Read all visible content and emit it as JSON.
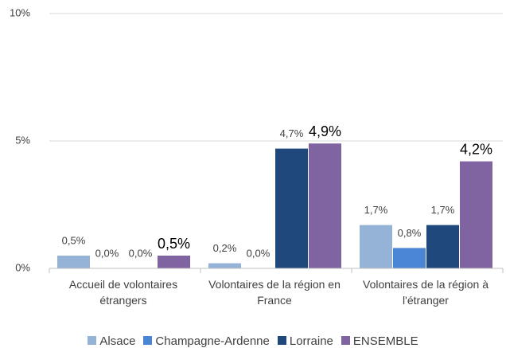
{
  "chart_data": {
    "type": "bar",
    "categories": [
      "Accueil de volontaires étrangers",
      "Volontaires de la région en France",
      "Volontaires de la région à l'étranger"
    ],
    "series": [
      {
        "name": "Alsace",
        "color": "#95b3d7",
        "values": [
          0.5,
          0.2,
          1.7
        ],
        "value_labels": [
          "0,5%",
          "0,2%",
          "1,7%"
        ]
      },
      {
        "name": "Champagne-Ardenne",
        "color": "#4a86d4",
        "values": [
          0.0,
          0.0,
          0.8
        ],
        "value_labels": [
          "0,0%",
          "0,0%",
          "0,8%"
        ]
      },
      {
        "name": "Lorraine",
        "color": "#1f497d",
        "values": [
          0.0,
          4.7,
          1.7
        ],
        "value_labels": [
          "0,0%",
          "4,7%",
          "1,7%"
        ]
      },
      {
        "name": "ENSEMBLE",
        "color": "#8064a2",
        "values": [
          0.5,
          4.9,
          4.2
        ],
        "value_labels": [
          "0,5%",
          "4,9%",
          "4,2%"
        ]
      }
    ],
    "ylim": [
      0,
      10
    ],
    "yticks": [
      {
        "value": 0,
        "label": "0%"
      },
      {
        "value": 5,
        "label": "5%"
      },
      {
        "value": 10,
        "label": "10%"
      }
    ],
    "grid": true
  }
}
